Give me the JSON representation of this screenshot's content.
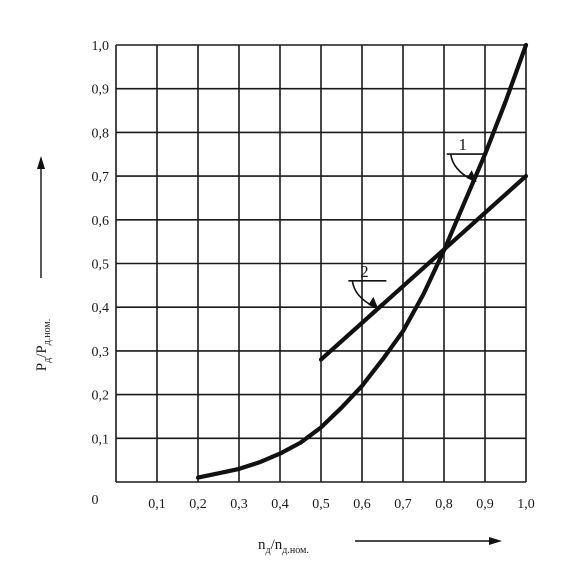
{
  "chart_data": {
    "type": "line",
    "title": "",
    "origin_label": "0",
    "x_ticks": [
      "0,1",
      "0,2",
      "0,3",
      "0,4",
      "0,5",
      "0,6",
      "0,7",
      "0,8",
      "0,9",
      "1,0"
    ],
    "y_ticks": [
      "0,1",
      "0,2",
      "0,3",
      "0,4",
      "0,5",
      "0,6",
      "0,7",
      "0,8",
      "0,9",
      "1,0"
    ],
    "xlim": [
      0,
      1.0
    ],
    "ylim": [
      0,
      1.0
    ],
    "grid": true,
    "xlabel": {
      "main": "n",
      "sub1": "д",
      "mid": "/n",
      "sub2": "д.ном."
    },
    "ylabel": {
      "main": "P",
      "sub1": "д",
      "mid": "/P",
      "sub2": "д.ном."
    },
    "series": [
      {
        "name": "1",
        "x": [
          0.2,
          0.25,
          0.3,
          0.35,
          0.4,
          0.45,
          0.5,
          0.55,
          0.6,
          0.65,
          0.7,
          0.75,
          0.8,
          0.85,
          0.9,
          0.95,
          1.0
        ],
        "y": [
          0.01,
          0.02,
          0.03,
          0.045,
          0.065,
          0.09,
          0.125,
          0.17,
          0.22,
          0.28,
          0.345,
          0.43,
          0.53,
          0.64,
          0.75,
          0.87,
          1.0
        ]
      },
      {
        "name": "2",
        "x": [
          0.5,
          1.0
        ],
        "y": [
          0.28,
          0.7
        ]
      }
    ],
    "callouts": [
      {
        "label": "1",
        "at_x": 0.875,
        "at_y": 0.7
      },
      {
        "label": "2",
        "at_x": 0.635,
        "at_y": 0.41
      }
    ]
  }
}
